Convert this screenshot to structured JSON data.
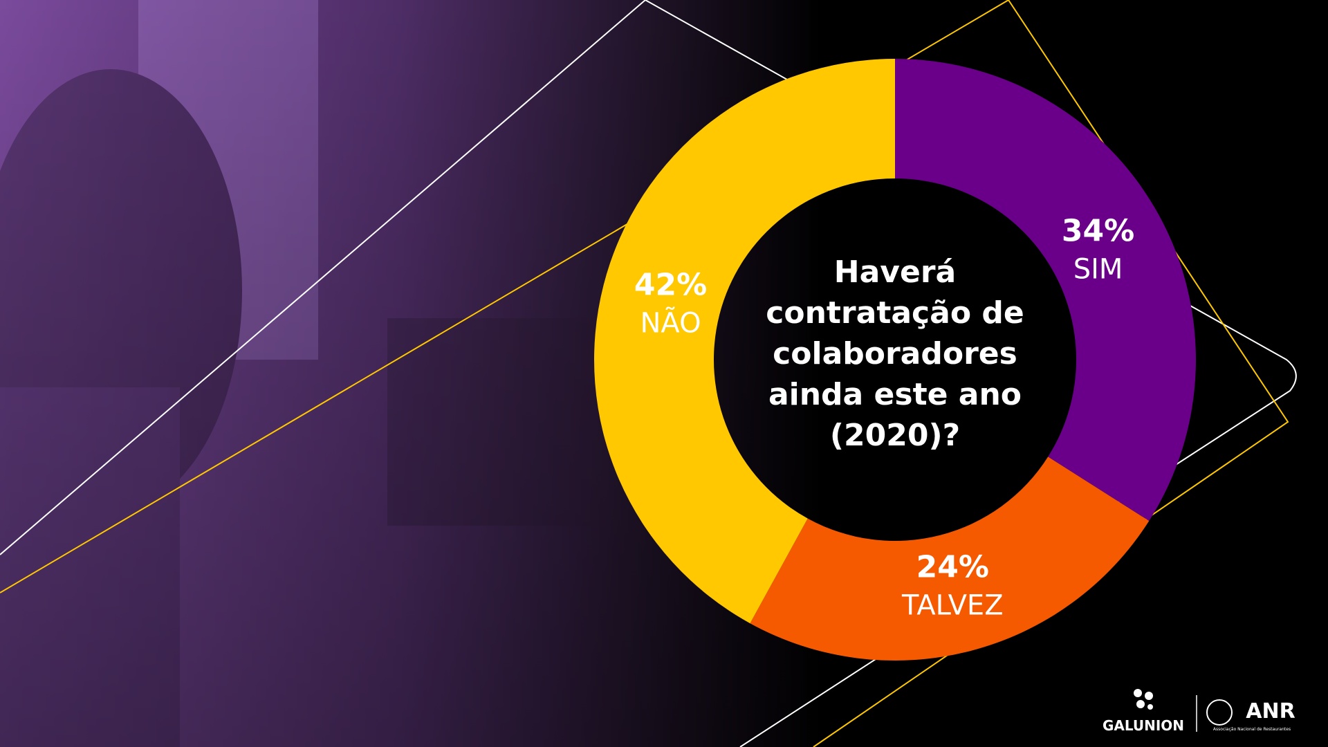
{
  "chart_data": {
    "type": "donut",
    "title": "Haverá contratação de colaboradores ainda este ano (2020)?",
    "categories": [
      "SIM",
      "TALVEZ",
      "NÃO"
    ],
    "values": [
      34,
      24,
      42
    ],
    "value_labels": [
      "34%",
      "24%",
      "42%"
    ],
    "colors": [
      "#6a008a",
      "#f55a00",
      "#ffc800"
    ]
  },
  "footer": {
    "logos": [
      "GALUNION",
      "ANR",
      "Associação Nacional de Restaurantes"
    ]
  }
}
